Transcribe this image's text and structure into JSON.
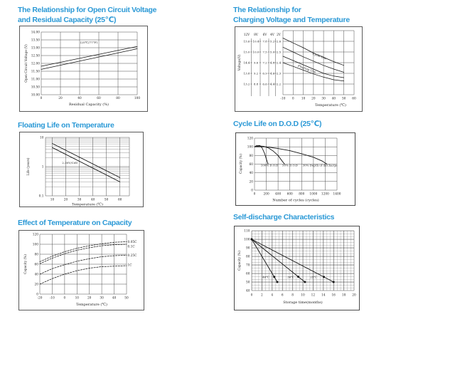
{
  "page": {
    "background": "#ffffff",
    "title_color": "#2b99d6",
    "description": "Battery characteristics datasheet page with six charts"
  },
  "chart_data": [
    {
      "id": "open-circuit-voltage",
      "type": "line",
      "title": "The Relationship for Open Circuit Voltage and Residual Capacity (25℃)",
      "title_lines": [
        "The Relationship for Open Circuit Voltage",
        "and Residual Capacity (25℃)"
      ],
      "xlabel": "Residual Capacity (%)",
      "ylabel": "Open Circuit Voltage (V)",
      "xlim": [
        0,
        100
      ],
      "ylim": [
        10,
        14
      ],
      "grid": true,
      "x_tick_labels": [
        "0",
        "20",
        "40",
        "60",
        "80",
        "100"
      ],
      "y_tick_labels": [
        "14.00",
        "13.50",
        "13.00",
        "12.50",
        "12.00",
        "11.50",
        "11.00",
        "10.50",
        "10.00"
      ],
      "annotation": "(25℃/77°F)",
      "series": [
        {
          "name": "upper limit",
          "points": [
            [
              0,
              11.82
            ],
            [
              100,
              13.08
            ]
          ]
        },
        {
          "name": "lower limit",
          "points": [
            [
              0,
              11.62
            ],
            [
              100,
              12.93
            ]
          ]
        }
      ]
    },
    {
      "id": "charging-voltage-temperature",
      "type": "line",
      "title": "The Relationship for Charging Voltage and Temperature",
      "title_lines": [
        "The Relationship for",
        "Charging Voltage and Temperature"
      ],
      "xlabel": "Temperature (℃)",
      "ylabel": "Voltage(V)",
      "xlim": [
        -10,
        60
      ],
      "ylim": [
        2.1,
        2.7
      ],
      "grid": true,
      "x_tick_labels": [
        "-10",
        "0",
        "10",
        "20",
        "30",
        "40",
        "50",
        "60"
      ],
      "scales": [
        {
          "header": "12V",
          "values": [
            "15.6",
            "15.0",
            "14.4",
            "13.8",
            "13.2"
          ]
        },
        {
          "header": "8V",
          "values": [
            "10.4",
            "10.0",
            "9.6",
            "9.2",
            "8.8"
          ]
        },
        {
          "header": "6V",
          "values": [
            "7.8",
            "7.5",
            "7.2",
            "6.9",
            "6.6"
          ]
        },
        {
          "header": "4V",
          "values": [
            "5.2",
            "5.0",
            "4.8",
            "4.6",
            "4.4"
          ]
        },
        {
          "header": "2V",
          "values": [
            "2.6",
            "2.5",
            "2.4",
            "2.3",
            "2.2"
          ]
        }
      ],
      "band_labels": [
        "Cycle Use",
        "Floating Use"
      ],
      "series": [
        {
          "name": "cycle use upper",
          "points": [
            [
              -10,
              2.63
            ],
            [
              0,
              2.585
            ],
            [
              10,
              2.54
            ],
            [
              20,
              2.49
            ],
            [
              30,
              2.45
            ],
            [
              40,
              2.41
            ],
            [
              50,
              2.375
            ]
          ]
        },
        {
          "name": "cycle use lower",
          "points": [
            [
              -10,
              2.545
            ],
            [
              0,
              2.5
            ],
            [
              10,
              2.455
            ],
            [
              20,
              2.415
            ],
            [
              30,
              2.375
            ],
            [
              40,
              2.34
            ],
            [
              50,
              2.31
            ]
          ]
        },
        {
          "name": "floating use upper",
          "points": [
            [
              -10,
              2.46
            ],
            [
              0,
              2.42
            ],
            [
              10,
              2.38
            ],
            [
              20,
              2.34
            ],
            [
              30,
              2.3
            ],
            [
              40,
              2.275
            ],
            [
              50,
              2.26
            ]
          ]
        },
        {
          "name": "floating use lower",
          "points": [
            [
              -10,
              2.4
            ],
            [
              0,
              2.365
            ],
            [
              10,
              2.33
            ],
            [
              20,
              2.295
            ],
            [
              30,
              2.265
            ],
            [
              40,
              2.24
            ],
            [
              50,
              2.228
            ]
          ]
        }
      ]
    },
    {
      "id": "floating-life",
      "type": "line",
      "title": "Floating Life on Temperature",
      "title_lines": [
        "Floating Life on Temperature"
      ],
      "xlabel": "Temperature (℃)",
      "ylabel": "Life (years)",
      "xlim": [
        5,
        67
      ],
      "ylim": [
        0.1,
        10
      ],
      "ylog": true,
      "grid": true,
      "x_tick_labels": [
        "10",
        "20",
        "30",
        "40",
        "50",
        "60"
      ],
      "y_tick_labels": [
        "10",
        "1",
        "0.1"
      ],
      "annotation": "2.30V/Cell",
      "series": [
        {
          "name": "upper band",
          "points": [
            [
              10,
              6.2
            ],
            [
              60,
              0.42
            ]
          ]
        },
        {
          "name": "lower band",
          "points": [
            [
              10,
              4.5
            ],
            [
              60,
              0.3
            ]
          ]
        }
      ]
    },
    {
      "id": "cycle-life-dod",
      "type": "line",
      "title": "Cycle Life on D.O.D (25℃)",
      "title_lines": [
        "Cycle Life on D.O.D (25℃)"
      ],
      "xlabel": "Number of cycles (cycles)",
      "ylabel": "Capacity (%)",
      "xlim": [
        0,
        1400
      ],
      "ylim": [
        0,
        120
      ],
      "grid": true,
      "x_tick_labels": [
        "0",
        "200",
        "400",
        "600",
        "800",
        "1000",
        "1200",
        "1400"
      ],
      "y_tick_labels": [
        "120",
        "100",
        "80",
        "60",
        "40",
        "20",
        "0"
      ],
      "series": [
        {
          "name": "100% D.O.D",
          "label": "100% D.O.D",
          "points": [
            [
              0,
              100
            ],
            [
              40,
              103
            ],
            [
              90,
              103
            ],
            [
              130,
              97
            ],
            [
              170,
              85
            ],
            [
              200,
              72
            ],
            [
              230,
              60
            ]
          ]
        },
        {
          "name": "50% D.O.D",
          "label": "50% D.O.D",
          "points": [
            [
              0,
              100
            ],
            [
              80,
              102
            ],
            [
              160,
              101
            ],
            [
              240,
              97
            ],
            [
              320,
              90
            ],
            [
              400,
              80
            ],
            [
              470,
              67
            ],
            [
              510,
              60
            ]
          ]
        },
        {
          "name": "30% Depth of discharge",
          "label": "30% Depth of discharge",
          "points": [
            [
              0,
              100
            ],
            [
              200,
              100
            ],
            [
              400,
              96
            ],
            [
              600,
              91
            ],
            [
              800,
              84
            ],
            [
              1000,
              76
            ],
            [
              1150,
              67
            ],
            [
              1230,
              60
            ]
          ]
        }
      ]
    },
    {
      "id": "temperature-capacity",
      "type": "line",
      "title": "Effect of Temperature on Capacity",
      "title_lines": [
        "Effect of Temperature on Capacity"
      ],
      "xlabel": "Temperature (℃)",
      "ylabel": "Capacity (%)",
      "xlim": [
        -20,
        50
      ],
      "ylim": [
        0,
        120
      ],
      "grid": true,
      "x_tick_labels": [
        "-20",
        "-10",
        "0",
        "10",
        "20",
        "30",
        "40",
        "50"
      ],
      "y_tick_labels": [
        "120",
        "100",
        "80",
        "60",
        "40",
        "20",
        "0"
      ],
      "series": [
        {
          "name": "0.05C",
          "label": "0.05C",
          "points": [
            [
              -20,
              65
            ],
            [
              -10,
              76
            ],
            [
              0,
              85
            ],
            [
              10,
              92
            ],
            [
              20,
              97
            ],
            [
              30,
              101
            ],
            [
              40,
              104
            ],
            [
              50,
              105
            ]
          ]
        },
        {
          "name": "0.1C",
          "label": "0.1C",
          "points": [
            [
              -20,
              61
            ],
            [
              -10,
              72
            ],
            [
              0,
              81
            ],
            [
              10,
              88
            ],
            [
              20,
              93
            ],
            [
              30,
              97
            ],
            [
              40,
              99
            ],
            [
              50,
              100
            ]
          ]
        },
        {
          "name": "0.25C",
          "label": "0.25C",
          "points": [
            [
              -20,
              40
            ],
            [
              -10,
              51
            ],
            [
              0,
              59
            ],
            [
              10,
              66
            ],
            [
              20,
              71
            ],
            [
              30,
              75
            ],
            [
              40,
              77
            ],
            [
              50,
              78
            ]
          ]
        },
        {
          "name": "1C",
          "label": "1C",
          "points": [
            [
              -20,
              20
            ],
            [
              -10,
              31
            ],
            [
              0,
              40
            ],
            [
              10,
              47
            ],
            [
              20,
              52
            ],
            [
              30,
              55
            ],
            [
              40,
              56
            ],
            [
              50,
              57
            ]
          ]
        }
      ]
    },
    {
      "id": "self-discharge",
      "type": "line",
      "title": "Self-discharge Characteristics",
      "title_lines": [
        "Self-discharge Characteristics"
      ],
      "xlabel": "Storage time(months)",
      "ylabel": "Capacity (%)",
      "xlim": [
        0,
        20
      ],
      "ylim": [
        40,
        110
      ],
      "grid": true,
      "x_tick_labels": [
        "0",
        "2",
        "4",
        "6",
        "8",
        "10",
        "12",
        "14",
        "16",
        "18",
        "20"
      ],
      "y_tick_labels": [
        "110",
        "100",
        "90",
        "80",
        "70",
        "60",
        "50",
        "40"
      ],
      "series": [
        {
          "name": "40℃",
          "label": "40℃",
          "points": [
            [
              0,
              100
            ],
            [
              4.4,
              56
            ],
            [
              5,
              50
            ]
          ]
        },
        {
          "name": "30℃",
          "label": "30℃",
          "points": [
            [
              0,
              100
            ],
            [
              9.1,
              56.2
            ],
            [
              10.4,
              50
            ]
          ]
        },
        {
          "name": "25℃",
          "label": "25℃",
          "points": [
            [
              0,
              100
            ],
            [
              14.1,
              55.9
            ],
            [
              16,
              50
            ]
          ]
        }
      ]
    }
  ]
}
